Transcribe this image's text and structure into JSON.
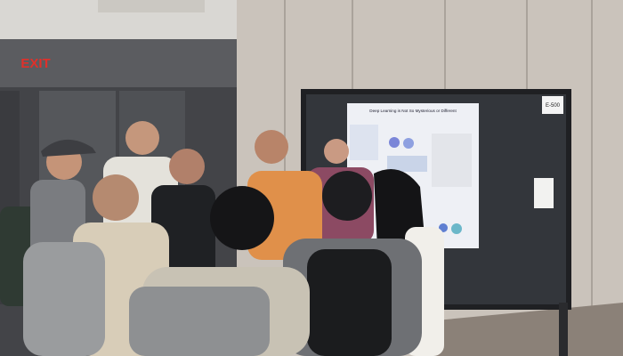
{
  "signs": {
    "exit": "EXIT",
    "board_number": "E-500"
  },
  "poster": {
    "title": "Deep Learning is Not So Mysterious or Different"
  }
}
